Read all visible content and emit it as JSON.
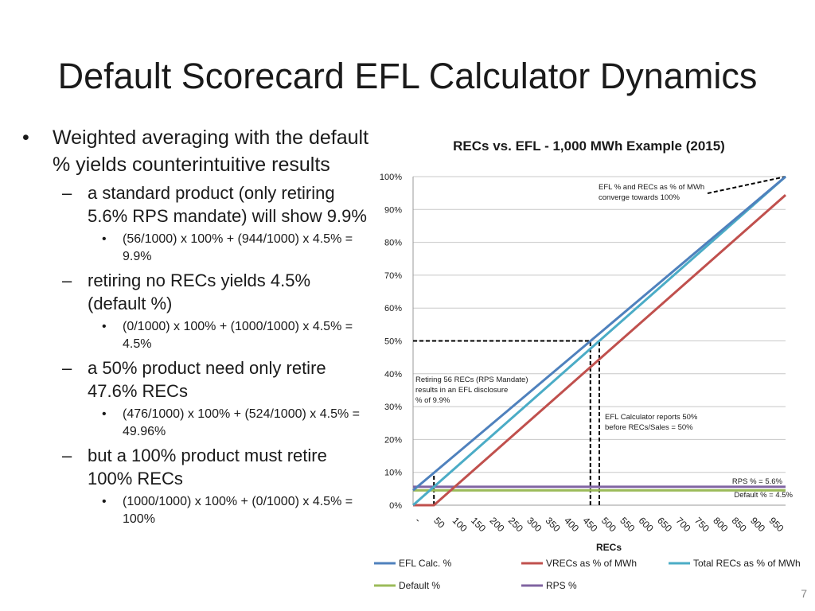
{
  "slide": {
    "title": "Default Scorecard EFL Calculator Dynamics",
    "page_number": "7",
    "bullets": [
      {
        "level": 1,
        "text": "Weighted averaging with the default % yields counterintuitive results"
      },
      {
        "level": 2,
        "text": "a standard product (only retiring 5.6% RPS mandate) will show 9.9%"
      },
      {
        "level": 3,
        "text": "(56/1000) x 100% + (944/1000) x 4.5% = 9.9%"
      },
      {
        "level": 2,
        "text": "retiring no RECs yields 4.5% (default %)"
      },
      {
        "level": 3,
        "text": "(0/1000) x 100% + (1000/1000) x 4.5% = 4.5%"
      },
      {
        "level": 2,
        "text": "a 50% product need only retire 47.6% RECs"
      },
      {
        "level": 3,
        "text": "(476/1000) x 100% + (524/1000) x 4.5% = 49.96%"
      },
      {
        "level": 2,
        "text": "but a 100% product must retire 100% RECs"
      },
      {
        "level": 3,
        "text": "(1000/1000) x 100% + (0/1000) x 4.5% = 100%"
      }
    ]
  },
  "chart_data": {
    "type": "line",
    "title": "RECs vs. EFL - 1,000 MWh Example (2015)",
    "xlabel": "RECs",
    "ylabel": "",
    "categories": [
      "-",
      "50",
      "100",
      "150",
      "200",
      "250",
      "300",
      "350",
      "400",
      "450",
      "500",
      "550",
      "600",
      "650",
      "700",
      "750",
      "800",
      "850",
      "900",
      "950"
    ],
    "x_range": [
      0,
      1000
    ],
    "ylim": [
      0,
      100
    ],
    "y_ticks": [
      0,
      10,
      20,
      30,
      40,
      50,
      60,
      70,
      80,
      90,
      100
    ],
    "y_tick_labels": [
      "0%",
      "10%",
      "20%",
      "30%",
      "40%",
      "50%",
      "60%",
      "70%",
      "80%",
      "90%",
      "100%"
    ],
    "grid": true,
    "legend_position": "bottom",
    "series": [
      {
        "name": "EFL Calc. %",
        "color": "#4f81bd",
        "points": [
          [
            0,
            4.5
          ],
          [
            1000,
            100
          ]
        ]
      },
      {
        "name": "VRECs as % of MWh",
        "color": "#c0504d",
        "points": [
          [
            0,
            0
          ],
          [
            56,
            0
          ],
          [
            1000,
            94.4
          ]
        ]
      },
      {
        "name": "Total RECs as % of MWh",
        "color": "#4bacc6",
        "points": [
          [
            0,
            0
          ],
          [
            1000,
            100
          ]
        ]
      },
      {
        "name": "Default %",
        "color": "#9bbb59",
        "points": [
          [
            0,
            4.5
          ],
          [
            1000,
            4.5
          ]
        ]
      },
      {
        "name": "RPS %",
        "color": "#8064a2",
        "points": [
          [
            0,
            5.6
          ],
          [
            1000,
            5.6
          ]
        ]
      }
    ],
    "annotations": [
      {
        "id": "converge",
        "text": [
          "EFL % and RECs as % of MWh",
          "converge towards 100%"
        ]
      },
      {
        "id": "rps-mandate",
        "text": [
          "Retiring 56 RECs (RPS Mandate)",
          "results in an EFL disclosure",
          "% of 9.9%"
        ]
      },
      {
        "id": "fifty",
        "text": [
          "EFL Calculator reports 50%",
          "before RECs/Sales = 50%"
        ]
      },
      {
        "id": "rps-label",
        "text": [
          "RPS % = 5.6%"
        ]
      },
      {
        "id": "default-label",
        "text": [
          "Default % = 4.5%"
        ]
      }
    ],
    "reference_lines": [
      {
        "id": "rps-mandate",
        "points": [
          [
            56,
            0
          ],
          [
            56,
            9.9
          ]
        ]
      },
      {
        "id": "fifty-h",
        "points": [
          [
            0,
            50
          ],
          [
            476,
            50
          ]
        ]
      },
      {
        "id": "fifty-v1",
        "points": [
          [
            476,
            0
          ],
          [
            476,
            50
          ]
        ]
      },
      {
        "id": "fifty-v2",
        "points": [
          [
            500,
            0
          ],
          [
            500,
            50
          ]
        ]
      },
      {
        "id": "converge-arrow",
        "points": [
          [
            1000,
            100
          ]
        ]
      }
    ]
  }
}
